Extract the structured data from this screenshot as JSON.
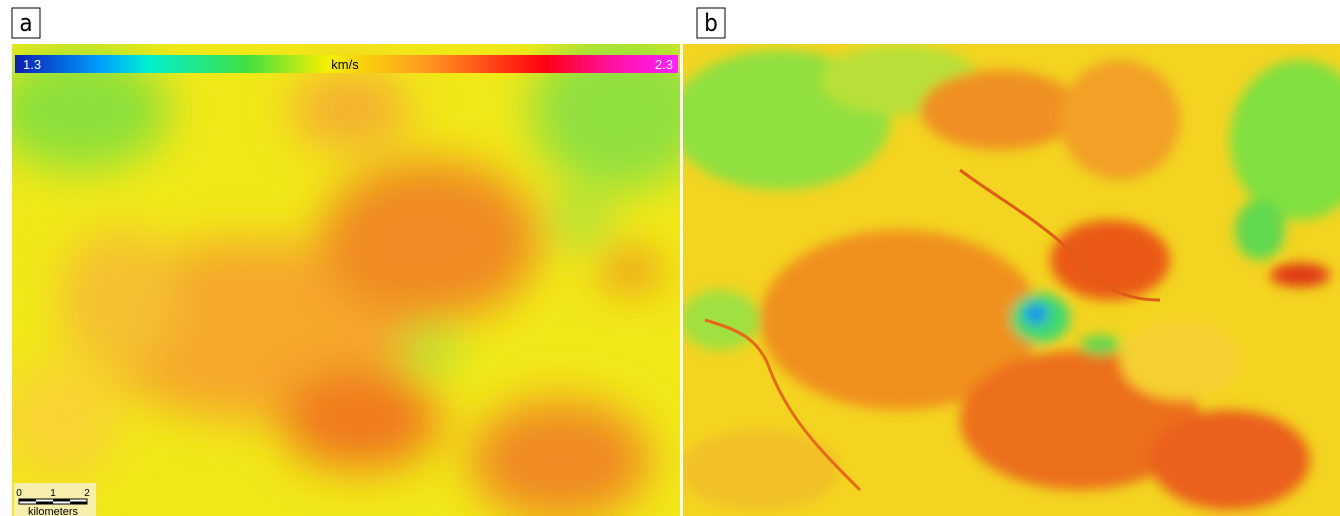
{
  "panels": [
    {
      "label": "a",
      "colorbar": {
        "min_label": "1.3",
        "unit": "km/s",
        "max_label": "2.3"
      },
      "scale_bar": {
        "ticks": [
          "0",
          "1",
          "2"
        ],
        "unit": "kilometers"
      }
    },
    {
      "label": "b"
    }
  ]
}
